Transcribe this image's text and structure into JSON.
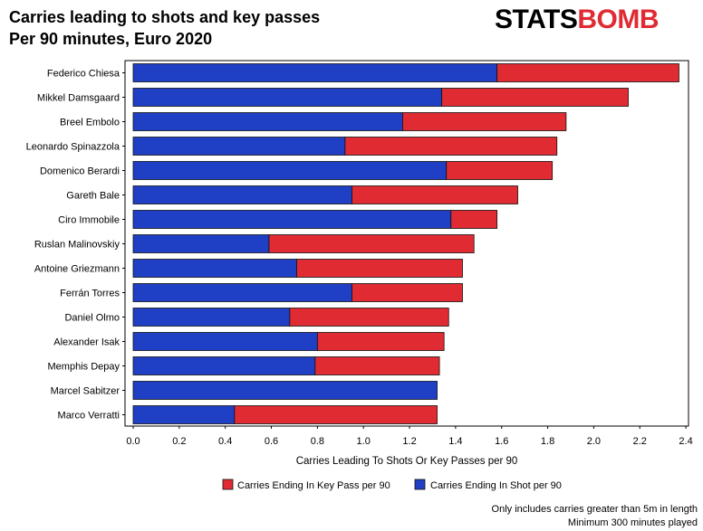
{
  "title": "Carries leading to shots and key passes",
  "subtitle": "Per 90 minutes, Euro 2020",
  "logo": {
    "part1": "STATS",
    "part2": "BOMB"
  },
  "footnotes": [
    "Only includes carries greater than 5m in length",
    "Minimum 300 minutes played"
  ],
  "colors": {
    "shot": "#1f3fc4",
    "keypass": "#e02b33",
    "outline": "#111111"
  },
  "chart_data": {
    "type": "bar",
    "orientation": "horizontal",
    "stacked": true,
    "categories": [
      "Federico Chiesa",
      "Mikkel Damsgaard",
      "Breel Embolo",
      "Leonardo Spinazzola",
      "Domenico Berardi",
      "Gareth Bale",
      "Ciro Immobile",
      "Ruslan Malinovskiy",
      "Antoine Griezmann",
      "Ferrán Torres",
      "Daniel Olmo",
      "Alexander Isak",
      "Memphis Depay",
      "Marcel Sabitzer",
      "Marco Verratti"
    ],
    "series": [
      {
        "name": "Carries Ending In Shot per 90",
        "values": [
          1.58,
          1.34,
          1.17,
          0.92,
          1.36,
          0.95,
          1.38,
          0.59,
          0.71,
          0.95,
          0.68,
          0.8,
          0.79,
          1.32,
          0.44
        ]
      },
      {
        "name": "Carries Ending In Key Pass per 90",
        "values": [
          0.79,
          0.81,
          0.71,
          0.92,
          0.46,
          0.72,
          0.2,
          0.89,
          0.72,
          0.48,
          0.69,
          0.55,
          0.54,
          0.0,
          0.88
        ]
      }
    ],
    "xlabel": "Carries Leading To Shots Or Key Passes per 90",
    "xlim": [
      0,
      2.4
    ],
    "xticks": [
      "0.0",
      "0.2",
      "0.4",
      "0.6",
      "0.8",
      "1.0",
      "1.2",
      "1.4",
      "1.6",
      "1.8",
      "2.0",
      "2.2",
      "2.4"
    ],
    "legend_order": [
      "Carries Ending In Key Pass per 90",
      "Carries Ending In Shot per 90"
    ],
    "legend_position": "bottom",
    "grid": false
  }
}
